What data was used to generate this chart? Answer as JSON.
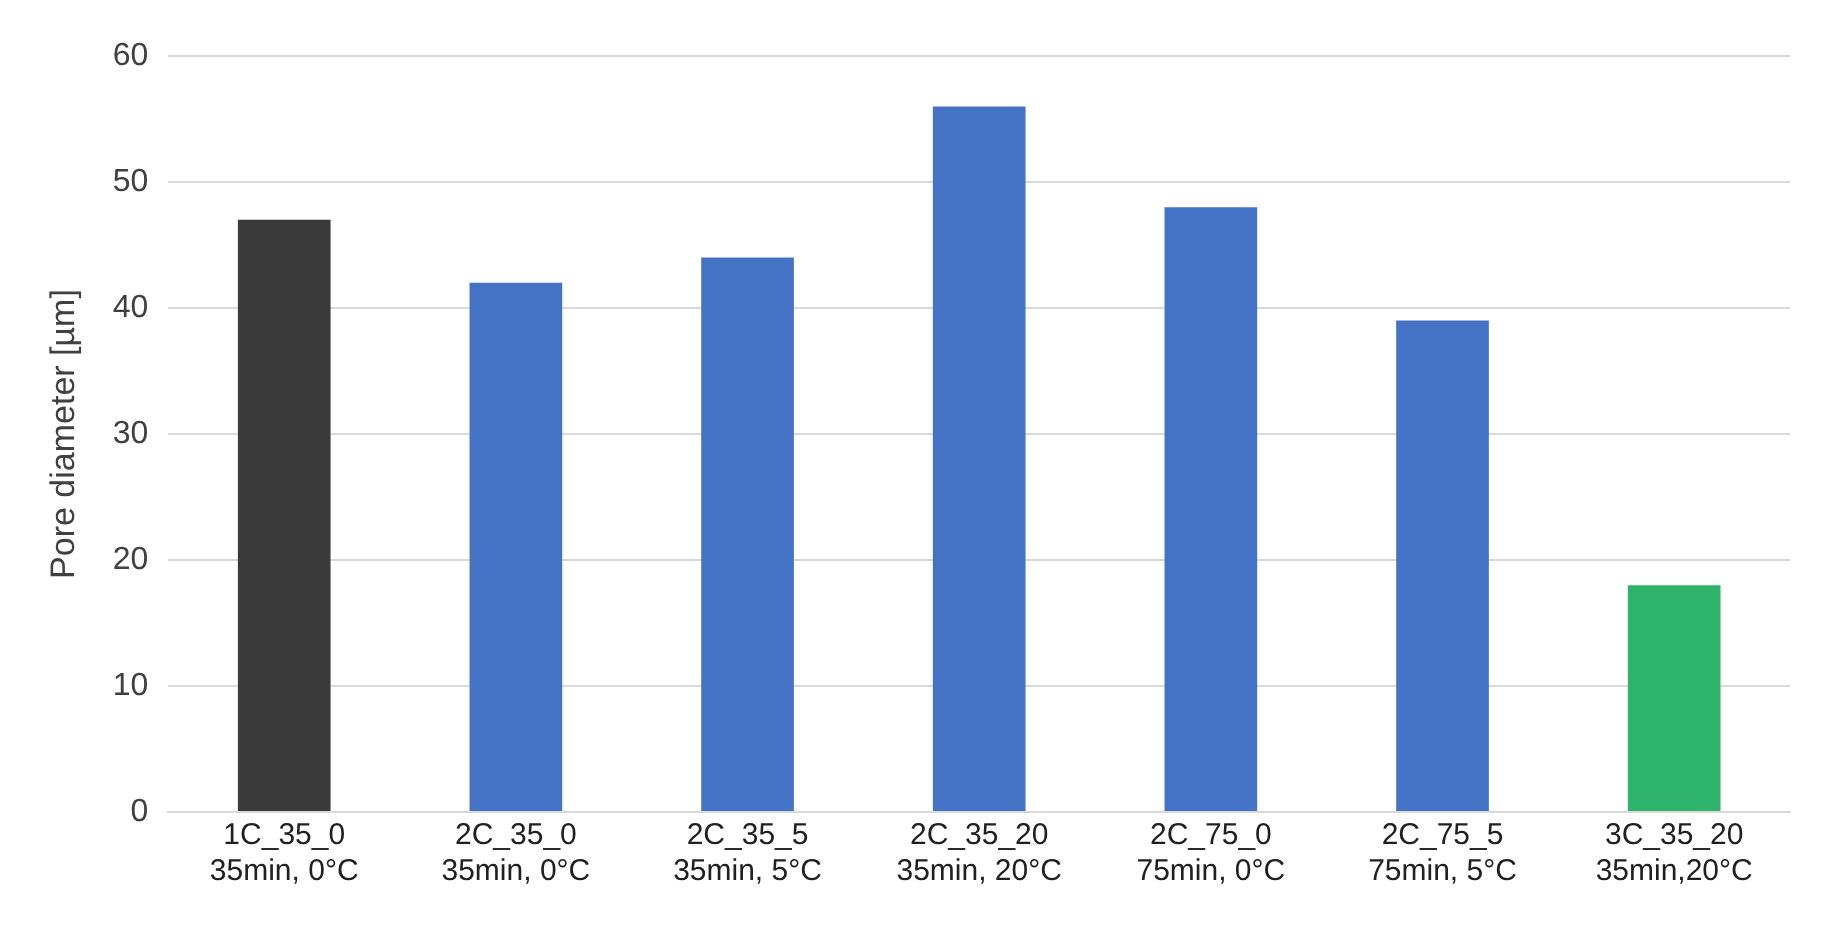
{
  "chart_data": {
    "type": "bar",
    "ylabel": "Pore diameter [µm]",
    "categories": [
      "1C_35_0\n35min, 0°C",
      "2C_35_0\n35min, 0°C",
      "2C_35_5\n35min, 5°C",
      "2C_35_20\n35min, 20°C",
      "2C_75_0\n75min, 0°C",
      "2C_75_5\n75min, 5°C",
      "3C_35_20\n35min,20°C"
    ],
    "values": [
      47,
      42,
      44,
      56,
      48,
      39,
      18
    ],
    "colors": [
      "#3a3a3a",
      "#4472c4",
      "#4472c4",
      "#4472c4",
      "#4472c4",
      "#4472c4",
      "#2db36b"
    ],
    "ylim": [
      0,
      60
    ],
    "yticks": [
      0,
      10,
      20,
      30,
      40,
      50,
      60
    ],
    "grid": "y",
    "legend": false
  }
}
